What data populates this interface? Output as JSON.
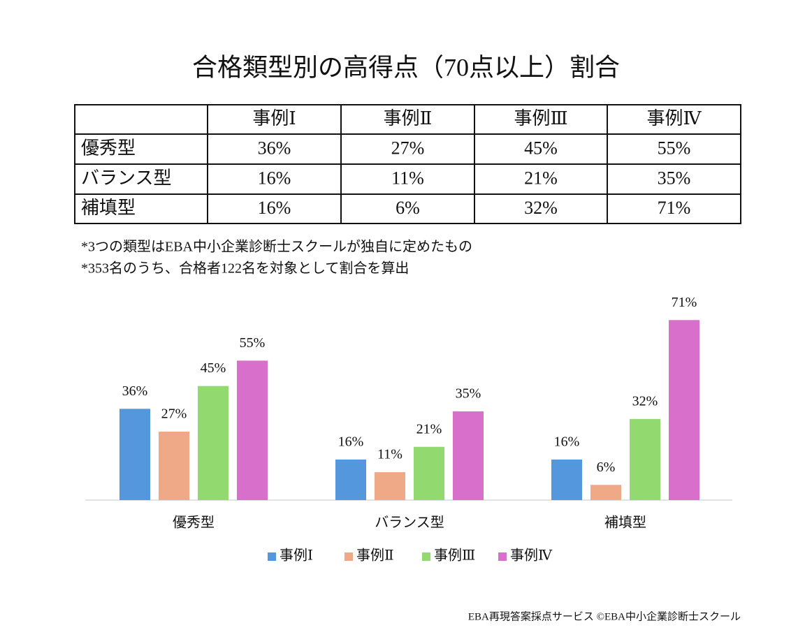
{
  "title": "合格類型別の高得点（70点以上）割合",
  "table": {
    "columns": [
      "事例Ⅰ",
      "事例Ⅱ",
      "事例Ⅲ",
      "事例Ⅳ"
    ],
    "rows": [
      {
        "label": "優秀型",
        "cells": [
          "36%",
          "27%",
          "45%",
          "55%"
        ]
      },
      {
        "label": "バランス型",
        "cells": [
          "16%",
          "11%",
          "21%",
          "35%"
        ]
      },
      {
        "label": "補填型",
        "cells": [
          "16%",
          "6%",
          "32%",
          "71%"
        ]
      }
    ]
  },
  "notes": [
    "*3つの類型はEBA中小企業診断士スクールが独自に定めたもの",
    "*353名のうち、合格者122名を対象として割合を算出"
  ],
  "chart_data": {
    "type": "bar",
    "categories": [
      "優秀型",
      "バランス型",
      "補填型"
    ],
    "series": [
      {
        "name": "事例Ⅰ",
        "color": "#5597dc",
        "values": [
          36,
          16,
          16
        ],
        "value_labels": [
          "36%",
          "16%",
          "16%"
        ]
      },
      {
        "name": "事例Ⅱ",
        "color": "#f0a986",
        "values": [
          27,
          11,
          6
        ],
        "value_labels": [
          "27%",
          "11%",
          "6%"
        ]
      },
      {
        "name": "事例Ⅲ",
        "color": "#92d96f",
        "values": [
          45,
          21,
          32
        ],
        "value_labels": [
          "45%",
          "21%",
          "32%"
        ]
      },
      {
        "name": "事例Ⅳ",
        "color": "#d86fcb",
        "values": [
          55,
          35,
          71
        ],
        "value_labels": [
          "55%",
          "35%",
          "71%"
        ]
      }
    ],
    "legend": "bottom"
  },
  "footer": "EBA再現答案採点サービス ©EBA中小企業診断士スクール"
}
